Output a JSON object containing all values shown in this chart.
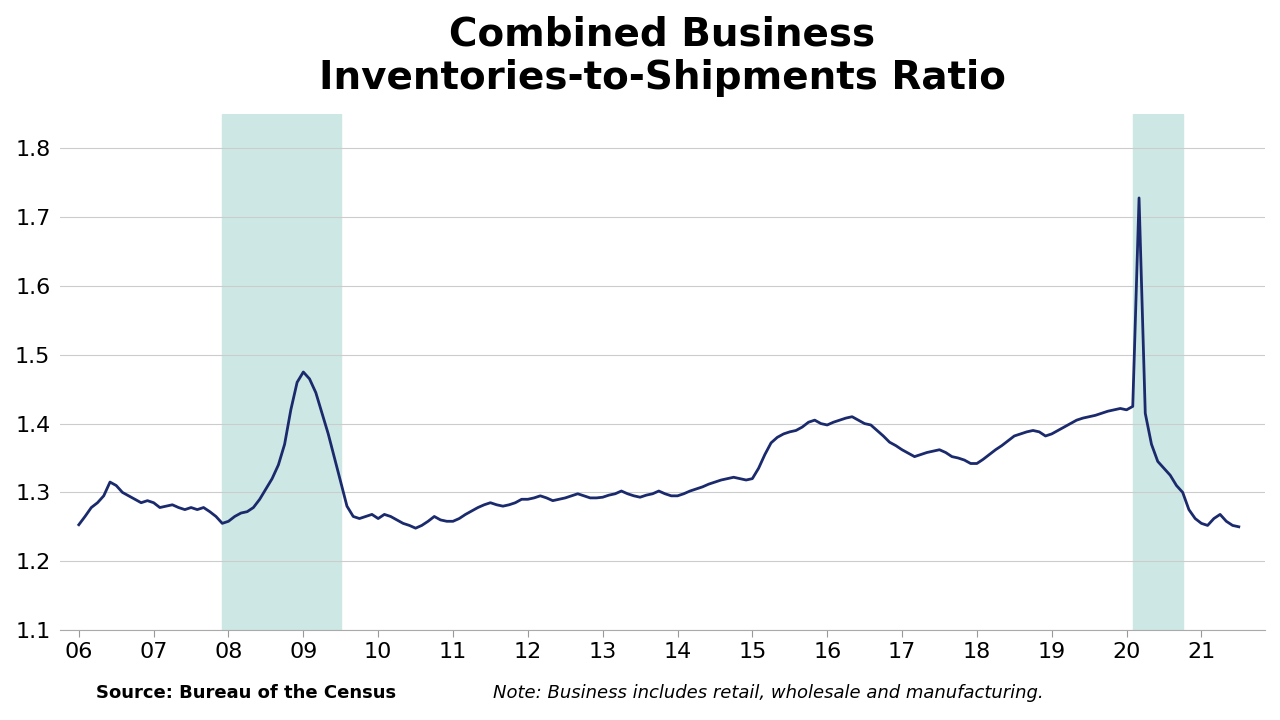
{
  "title": "Combined Business\nInventories-to-Shipments Ratio",
  "source_text": "Source: Bureau of the Census",
  "note_text": "Note: Business includes retail, wholesale and manufacturing.",
  "line_color": "#1a2a6c",
  "recession1_start": 2007.917,
  "recession1_end": 2009.5,
  "recession2_start": 2020.083,
  "recession2_end": 2020.75,
  "recession_color": "#cde8e4",
  "background_color": "#ffffff",
  "grid_color": "#cccccc",
  "ylim": [
    1.1,
    1.85
  ],
  "yticks": [
    1.1,
    1.2,
    1.3,
    1.4,
    1.5,
    1.6,
    1.7,
    1.8
  ],
  "xlim": [
    2005.75,
    2021.85
  ],
  "xtick_positions": [
    2006,
    2007,
    2008,
    2009,
    2010,
    2011,
    2012,
    2013,
    2014,
    2015,
    2016,
    2017,
    2018,
    2019,
    2020,
    2021
  ],
  "xtick_labels": [
    "06",
    "07",
    "08",
    "09",
    "10",
    "11",
    "12",
    "13",
    "14",
    "15",
    "16",
    "17",
    "18",
    "19",
    "20",
    "21"
  ],
  "data": {
    "dates": [
      2006.0,
      2006.083,
      2006.167,
      2006.25,
      2006.333,
      2006.417,
      2006.5,
      2006.583,
      2006.667,
      2006.75,
      2006.833,
      2006.917,
      2007.0,
      2007.083,
      2007.167,
      2007.25,
      2007.333,
      2007.417,
      2007.5,
      2007.583,
      2007.667,
      2007.75,
      2007.833,
      2007.917,
      2008.0,
      2008.083,
      2008.167,
      2008.25,
      2008.333,
      2008.417,
      2008.5,
      2008.583,
      2008.667,
      2008.75,
      2008.833,
      2008.917,
      2009.0,
      2009.083,
      2009.167,
      2009.25,
      2009.333,
      2009.417,
      2009.5,
      2009.583,
      2009.667,
      2009.75,
      2009.833,
      2009.917,
      2010.0,
      2010.083,
      2010.167,
      2010.25,
      2010.333,
      2010.417,
      2010.5,
      2010.583,
      2010.667,
      2010.75,
      2010.833,
      2010.917,
      2011.0,
      2011.083,
      2011.167,
      2011.25,
      2011.333,
      2011.417,
      2011.5,
      2011.583,
      2011.667,
      2011.75,
      2011.833,
      2011.917,
      2012.0,
      2012.083,
      2012.167,
      2012.25,
      2012.333,
      2012.417,
      2012.5,
      2012.583,
      2012.667,
      2012.75,
      2012.833,
      2012.917,
      2013.0,
      2013.083,
      2013.167,
      2013.25,
      2013.333,
      2013.417,
      2013.5,
      2013.583,
      2013.667,
      2013.75,
      2013.833,
      2013.917,
      2014.0,
      2014.083,
      2014.167,
      2014.25,
      2014.333,
      2014.417,
      2014.5,
      2014.583,
      2014.667,
      2014.75,
      2014.833,
      2014.917,
      2015.0,
      2015.083,
      2015.167,
      2015.25,
      2015.333,
      2015.417,
      2015.5,
      2015.583,
      2015.667,
      2015.75,
      2015.833,
      2015.917,
      2016.0,
      2016.083,
      2016.167,
      2016.25,
      2016.333,
      2016.417,
      2016.5,
      2016.583,
      2016.667,
      2016.75,
      2016.833,
      2016.917,
      2017.0,
      2017.083,
      2017.167,
      2017.25,
      2017.333,
      2017.417,
      2017.5,
      2017.583,
      2017.667,
      2017.75,
      2017.833,
      2017.917,
      2018.0,
      2018.083,
      2018.167,
      2018.25,
      2018.333,
      2018.417,
      2018.5,
      2018.583,
      2018.667,
      2018.75,
      2018.833,
      2018.917,
      2019.0,
      2019.083,
      2019.167,
      2019.25,
      2019.333,
      2019.417,
      2019.5,
      2019.583,
      2019.667,
      2019.75,
      2019.833,
      2019.917,
      2020.0,
      2020.083,
      2020.167,
      2020.25,
      2020.333,
      2020.417,
      2020.5,
      2020.583,
      2020.667,
      2020.75,
      2020.833,
      2020.917,
      2021.0,
      2021.083,
      2021.167,
      2021.25,
      2021.333,
      2021.417,
      2021.5
    ],
    "values": [
      1.253,
      1.265,
      1.278,
      1.285,
      1.295,
      1.315,
      1.31,
      1.3,
      1.295,
      1.29,
      1.285,
      1.288,
      1.285,
      1.278,
      1.28,
      1.282,
      1.278,
      1.275,
      1.278,
      1.275,
      1.278,
      1.272,
      1.265,
      1.255,
      1.258,
      1.265,
      1.27,
      1.272,
      1.278,
      1.29,
      1.305,
      1.32,
      1.34,
      1.37,
      1.42,
      1.46,
      1.475,
      1.465,
      1.445,
      1.415,
      1.385,
      1.35,
      1.315,
      1.28,
      1.265,
      1.262,
      1.265,
      1.268,
      1.262,
      1.268,
      1.265,
      1.26,
      1.255,
      1.252,
      1.248,
      1.252,
      1.258,
      1.265,
      1.26,
      1.258,
      1.258,
      1.262,
      1.268,
      1.273,
      1.278,
      1.282,
      1.285,
      1.282,
      1.28,
      1.282,
      1.285,
      1.29,
      1.29,
      1.292,
      1.295,
      1.292,
      1.288,
      1.29,
      1.292,
      1.295,
      1.298,
      1.295,
      1.292,
      1.292,
      1.293,
      1.296,
      1.298,
      1.302,
      1.298,
      1.295,
      1.293,
      1.296,
      1.298,
      1.302,
      1.298,
      1.295,
      1.295,
      1.298,
      1.302,
      1.305,
      1.308,
      1.312,
      1.315,
      1.318,
      1.32,
      1.322,
      1.32,
      1.318,
      1.32,
      1.335,
      1.355,
      1.372,
      1.38,
      1.385,
      1.388,
      1.39,
      1.395,
      1.402,
      1.405,
      1.4,
      1.398,
      1.402,
      1.405,
      1.408,
      1.41,
      1.405,
      1.4,
      1.398,
      1.39,
      1.382,
      1.373,
      1.368,
      1.362,
      1.357,
      1.352,
      1.355,
      1.358,
      1.36,
      1.362,
      1.358,
      1.352,
      1.35,
      1.347,
      1.342,
      1.342,
      1.348,
      1.355,
      1.362,
      1.368,
      1.375,
      1.382,
      1.385,
      1.388,
      1.39,
      1.388,
      1.382,
      1.385,
      1.39,
      1.395,
      1.4,
      1.405,
      1.408,
      1.41,
      1.412,
      1.415,
      1.418,
      1.42,
      1.422,
      1.42,
      1.425,
      1.728,
      1.415,
      1.37,
      1.345,
      1.335,
      1.325,
      1.31,
      1.3,
      1.275,
      1.262,
      1.255,
      1.252,
      1.262,
      1.268,
      1.258,
      1.252,
      1.25
    ]
  }
}
